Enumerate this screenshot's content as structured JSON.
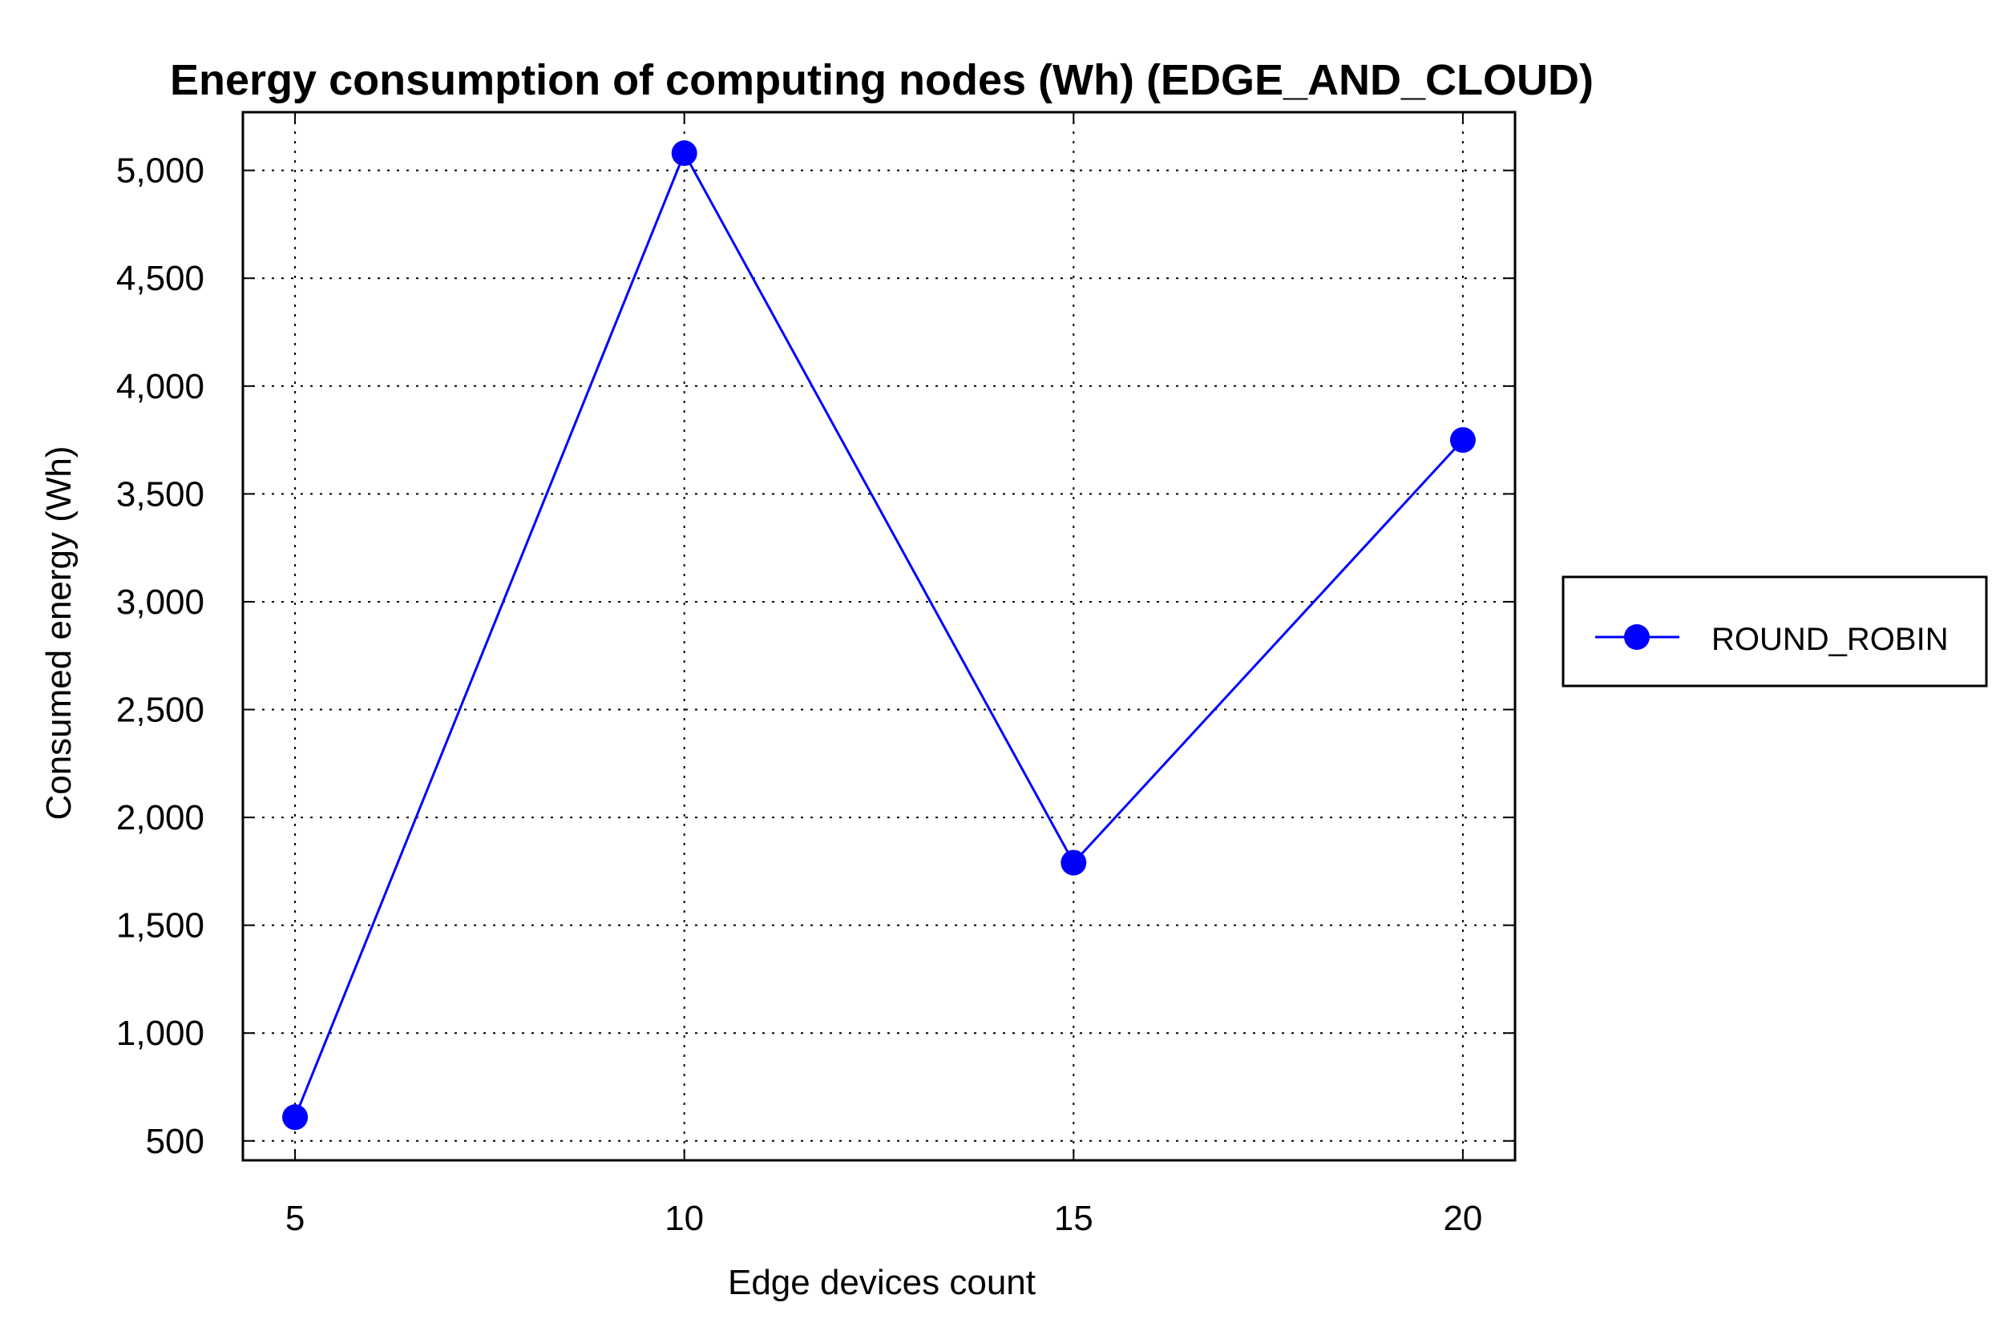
{
  "chart_data": {
    "type": "line",
    "title": "Energy consumption of computing nodes (Wh) (EDGE_AND_CLOUD)",
    "xlabel": "Edge devices count",
    "ylabel": "Consumed energy (Wh)",
    "x": [
      5,
      10,
      15,
      20
    ],
    "x_ticks": [
      "5",
      "10",
      "15",
      "20"
    ],
    "y_ticks": [
      "500",
      "1,000",
      "1,500",
      "2,000",
      "2,500",
      "3,000",
      "3,500",
      "4,000",
      "4,500",
      "5,000"
    ],
    "y_tick_values": [
      500,
      1000,
      1500,
      2000,
      2500,
      3000,
      3500,
      4000,
      4500,
      5000
    ],
    "xlim": [
      4.33,
      20.67
    ],
    "ylim": [
      410,
      5270
    ],
    "grid": true,
    "legend_position": "right",
    "series": [
      {
        "name": "ROUND_ROBIN",
        "color": "#0000ff",
        "marker": "circle",
        "values": [
          610,
          5080,
          1790,
          3750
        ]
      }
    ]
  }
}
